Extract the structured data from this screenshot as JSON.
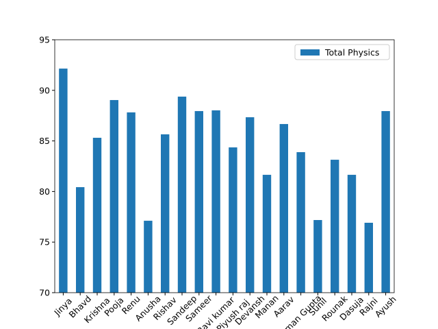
{
  "chart_data": {
    "type": "bar",
    "categories": [
      "Jinya",
      "Bhavd",
      "Krishna",
      "Pooja",
      "Renu",
      "Anusha",
      "Rishav",
      "Sandeep",
      "Sameer",
      "Ravi kumar",
      "Piyush raj",
      "Devansh",
      "Manan",
      "Aarav",
      "Aman Gupta",
      "Sunil",
      "Rounak",
      "Dasuja",
      "Rajni",
      "Ayush"
    ],
    "series": [
      {
        "name": "Total Physics",
        "color": "#1f77b4",
        "values": [
          92.15,
          80.43,
          85.31,
          89.04,
          87.82,
          77.11,
          85.65,
          89.38,
          87.95,
          88.02,
          84.36,
          87.34,
          81.65,
          86.67,
          83.89,
          77.18,
          83.14,
          81.65,
          76.91,
          87.95
        ]
      }
    ],
    "ylim": [
      70,
      95
    ],
    "yticks": [
      70,
      75,
      80,
      85,
      90,
      95
    ],
    "legend": "upper right"
  }
}
